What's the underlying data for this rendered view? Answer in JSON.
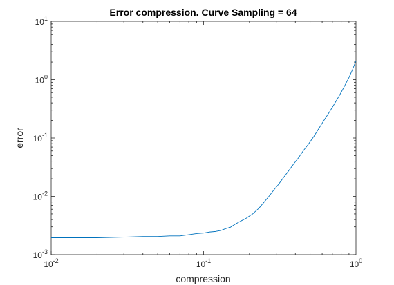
{
  "chart_data": {
    "type": "line",
    "title": "Error compression. Curve Sampling = 64",
    "xlabel": "compression",
    "ylabel": "error",
    "xscale": "log",
    "yscale": "log",
    "xlim": [
      0.01,
      1
    ],
    "ylim": [
      0.001,
      10
    ],
    "grid": false,
    "box": true,
    "x_ticks": [
      {
        "value": 0.01,
        "base": "10",
        "exp": "-2"
      },
      {
        "value": 0.1,
        "base": "10",
        "exp": "-1"
      },
      {
        "value": 1,
        "base": "10",
        "exp": "0"
      }
    ],
    "y_ticks": [
      {
        "value": 0.001,
        "base": "10",
        "exp": "-3"
      },
      {
        "value": 0.01,
        "base": "10",
        "exp": "-2"
      },
      {
        "value": 0.1,
        "base": "10",
        "exp": "-1"
      },
      {
        "value": 1,
        "base": "10",
        "exp": "0"
      },
      {
        "value": 10,
        "base": "10",
        "exp": "1"
      }
    ],
    "colors": {
      "line": "#0072bd",
      "axes": "#262626"
    },
    "series": [
      {
        "x": [
          0.01,
          0.02,
          0.03,
          0.04,
          0.05,
          0.06,
          0.07,
          0.08,
          0.09,
          0.1,
          0.11,
          0.12,
          0.13,
          0.14,
          0.15,
          0.16,
          0.17,
          0.18,
          0.19,
          0.2,
          0.21,
          0.22,
          0.23,
          0.25,
          0.27,
          0.29,
          0.31,
          0.33,
          0.36,
          0.39,
          0.42,
          0.45,
          0.49,
          0.53,
          0.57,
          0.62,
          0.67,
          0.72,
          0.78,
          0.84,
          0.9,
          0.95,
          1.0
        ],
        "y": [
          0.00195,
          0.00195,
          0.002,
          0.00205,
          0.00205,
          0.0021,
          0.0021,
          0.0022,
          0.0023,
          0.00235,
          0.00245,
          0.0025,
          0.0026,
          0.0028,
          0.00295,
          0.0033,
          0.0036,
          0.0039,
          0.0042,
          0.0046,
          0.005,
          0.0056,
          0.0062,
          0.008,
          0.0102,
          0.013,
          0.016,
          0.02,
          0.027,
          0.036,
          0.046,
          0.06,
          0.08,
          0.107,
          0.145,
          0.205,
          0.28,
          0.38,
          0.54,
          0.77,
          1.09,
          1.5,
          2.1
        ]
      }
    ]
  }
}
